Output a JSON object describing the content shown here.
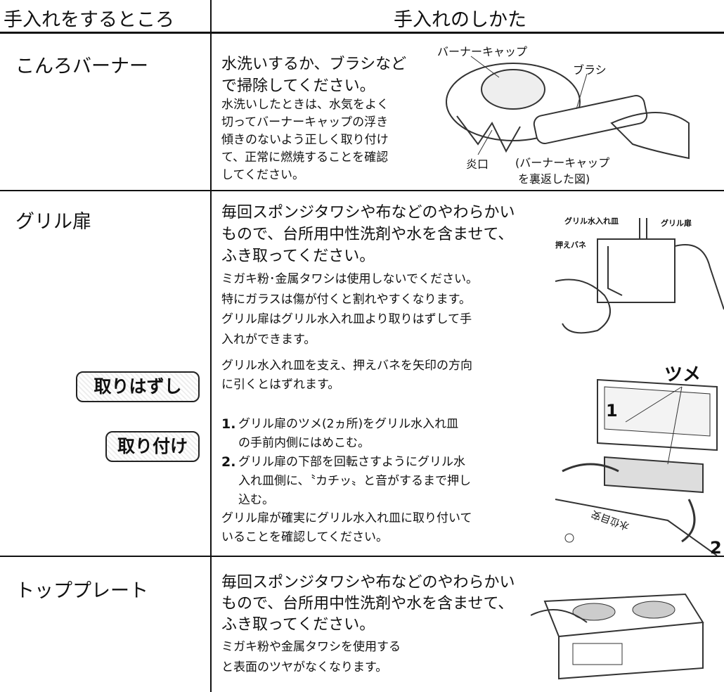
{
  "header": {
    "place": "手入れをするところ",
    "method": "手入れのしかた"
  },
  "rows": [
    {
      "place": "こんろバーナー",
      "heading": [
        "水洗いするか、ブラシなど",
        "で掃除してください。"
      ],
      "body": [
        "水洗いしたときは、水気をよく",
        "切ってバーナーキャップの浮き",
        "傾きのないよう正しく取り付け",
        "て、正常に燃焼することを確認",
        "してください。"
      ],
      "figure_labels": [
        "バーナーキャップ",
        "ブラシ",
        "炎口",
        "(バーナーキャップ",
        "を裏返した図)"
      ]
    },
    {
      "place": "グリル扉",
      "heading": [
        "毎回スポンジタワシや布などのやわらかい",
        "もので、台所用中性洗剤や水を含ませて、",
        "ふき取ってください。"
      ],
      "body": [
        "ミガキ粉･金属タワシは使用しないでください。",
        "特にガラスは傷が付くと割れやすくなります。",
        "グリル扉はグリル水入れ皿より取りはずして手",
        "入れができます。"
      ],
      "figure_labels": [
        "グリル水入れ皿",
        "グリル扉",
        "押えバネ"
      ],
      "remove": {
        "tag": "取りはずし",
        "lines": [
          "グリル水入れ皿を支え、押えバネを矢印の方向",
          "に引くとはずれます。"
        ]
      },
      "attach": {
        "tag": "取り付け",
        "steps": [
          {
            "number": "1.",
            "lines": [
              "グリル扉のツメ(2ヵ所)をグリル水入れ皿",
              "の手前内側にはめこむ。"
            ]
          },
          {
            "number": "2.",
            "lines": [
              "グリル扉の下部を回転さすようにグリル水",
              "入れ皿側に、〝カチッ〟と音がするまで押し",
              "込む。"
            ]
          }
        ],
        "lines": [
          "グリル扉が確実にグリル水入れ皿に取り付いて",
          "いることを確認してください。"
        ]
      },
      "figure2_labels": [
        "ツメ",
        "1",
        "2",
        "水位目安"
      ]
    },
    {
      "place": "トッププレート",
      "heading": [
        "毎回スポンジタワシや布などのやわらかい",
        "もので、台所用中性洗剤や水を含ませて、",
        "ふき取ってください。"
      ],
      "body": [
        "ミガキ粉や金属タワシを使用する",
        "と表面のツヤがなくなります。"
      ]
    }
  ]
}
